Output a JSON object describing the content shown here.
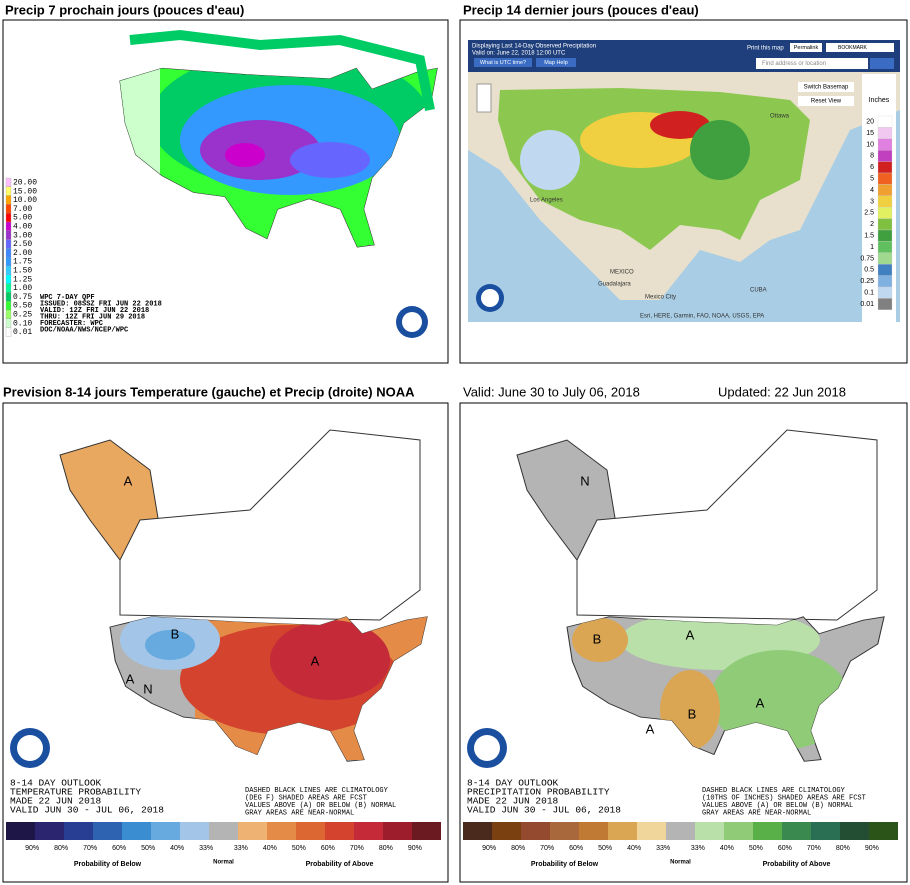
{
  "panels": [
    {
      "title": "Precip 7 prochain jours (pouces d'eau)",
      "legend": [
        "20.00",
        "15.00",
        "10.00",
        "7.00",
        "5.00",
        "4.00",
        "3.00",
        "2.50",
        "2.00",
        "1.75",
        "1.50",
        "1.25",
        "1.00",
        "0.75",
        "0.50",
        "0.25",
        "0.10",
        "0.01"
      ],
      "legend_colors": [
        "#ffbfff",
        "#ffff66",
        "#ffa500",
        "#ff4500",
        "#ff0000",
        "#cc00cc",
        "#9933cc",
        "#6666ff",
        "#3f86ff",
        "#3399ff",
        "#33ccff",
        "#00ffff",
        "#00ff99",
        "#00cc66",
        "#33ff33",
        "#99ff66",
        "#ccffcc",
        "#ffffff"
      ],
      "info": [
        "WPC 7-DAY QPF",
        "ISSUED: 08SSZ FRI JUN 22 2018",
        "VALID: 12Z FRI JUN 22 2018",
        "THRU: 12Z FRI JUN 29 2018",
        "FORECASTER: WPC",
        "DOC/NOAA/NWS/NCEP/WPC"
      ]
    },
    {
      "title": "Precip 14 dernier jours (pouces d'eau)",
      "header": [
        "Displaying Last 14-Day Observed Precipitation",
        "Valid on: June 22, 2018 12:00 UTC"
      ],
      "buttons": [
        "What is UTC time?",
        "Map Help"
      ],
      "tools": [
        "Print this map",
        "Permalink",
        "BOOKMARK"
      ],
      "search": "Find address or location",
      "basemap": "Switch Basemap",
      "reset": "Reset View",
      "unit": "Inches",
      "legend": [
        "20",
        "15",
        "10",
        "8",
        "6",
        "5",
        "4",
        "3",
        "2.5",
        "2",
        "1.5",
        "1",
        "0.75",
        "0.5",
        "0.25",
        "0.1",
        "0.01"
      ],
      "legend_colors": [
        "#ffffff",
        "#f0c8f0",
        "#e080e0",
        "#c040c0",
        "#d02020",
        "#f06020",
        "#f0a030",
        "#f0d040",
        "#e0f060",
        "#80c040",
        "#40a040",
        "#60c060",
        "#a0d890",
        "#4080c0",
        "#80b0e0",
        "#c0d8f0",
        "#808080"
      ],
      "places": [
        "Los Angeles",
        "MEXICO",
        "Guadalajara",
        "Mexico City",
        "Ottawa",
        "CUBA"
      ],
      "attribution": "Esri, HERE, Garmin, FAO, NOAA, USGS, EPA"
    }
  ],
  "outlook": {
    "title": "Prevision 8-14 jours Temperature (gauche) et Precip (droite) NOAA",
    "valid": "Valid: June 30 to July 06, 2018",
    "updated": "Updated: 22 Jun 2018",
    "panels": [
      {
        "lines": [
          "8-14 DAY OUTLOOK",
          "TEMPERATURE PROBABILITY",
          "MADE 22 JUN 2018",
          "VALID JUN 30 - JUL 06, 2018"
        ],
        "note": [
          "DASHED BLACK LINES ARE CLIMATOLOGY",
          "(DEG F) SHADED AREAS ARE FCST",
          "VALUES ABOVE (A) OR BELOW (B) NORMAL",
          "GRAY AREAS ARE NEAR-NORMAL"
        ],
        "colors": [
          "#1e1646",
          "#2b2570",
          "#283e92",
          "#2e63b2",
          "#3b8dd2",
          "#66aadf",
          "#a3c6e8",
          "#b4b4b4",
          "#eeb273",
          "#e58b48",
          "#dc6732",
          "#d3432d",
          "#c52a38",
          "#9d1d2d",
          "#6b1a22"
        ],
        "below_labels": [
          "90%",
          "80%",
          "70%",
          "60%",
          "50%",
          "40%",
          "33%"
        ],
        "normal": "Normal",
        "above_labels": [
          "33%",
          "40%",
          "50%",
          "60%",
          "70%",
          "80%",
          "90%"
        ],
        "below": "Probability of Below",
        "above": "Probability of Above",
        "letters": [
          "A",
          "B",
          "A",
          "N",
          "A"
        ]
      },
      {
        "lines": [
          "8-14 DAY OUTLOOK",
          "PRECIPITATION PROBABILITY",
          "MADE 22 JUN 2018",
          "VALID JUN 30 - JUL 06, 2018"
        ],
        "note": [
          "DASHED BLACK LINES ARE CLIMATOLOGY",
          "(10THS OF INCHES) SHADED AREAS ARE FCST",
          "VALUES ABOVE (A) OR BELOW (B) NORMAL",
          "GRAY AREAS ARE NEAR-NORMAL"
        ],
        "colors": [
          "#4a2a1c",
          "#7a4010",
          "#944a2e",
          "#a8683c",
          "#c07a34",
          "#daa654",
          "#f0d69a",
          "#b4b4b4",
          "#b8e0a8",
          "#90cc78",
          "#5ab048",
          "#3a8a50",
          "#2a6e54",
          "#244e34",
          "#2a5418"
        ],
        "below_labels": [
          "90%",
          "80%",
          "70%",
          "60%",
          "50%",
          "40%",
          "33%"
        ],
        "normal": "Normal",
        "above_labels": [
          "33%",
          "40%",
          "50%",
          "60%",
          "70%",
          "80%",
          "90%"
        ],
        "below": "Probability of Below",
        "above": "Probability of Above",
        "letters": [
          "N",
          "B",
          "A",
          "B",
          "A",
          "A"
        ]
      }
    ]
  }
}
